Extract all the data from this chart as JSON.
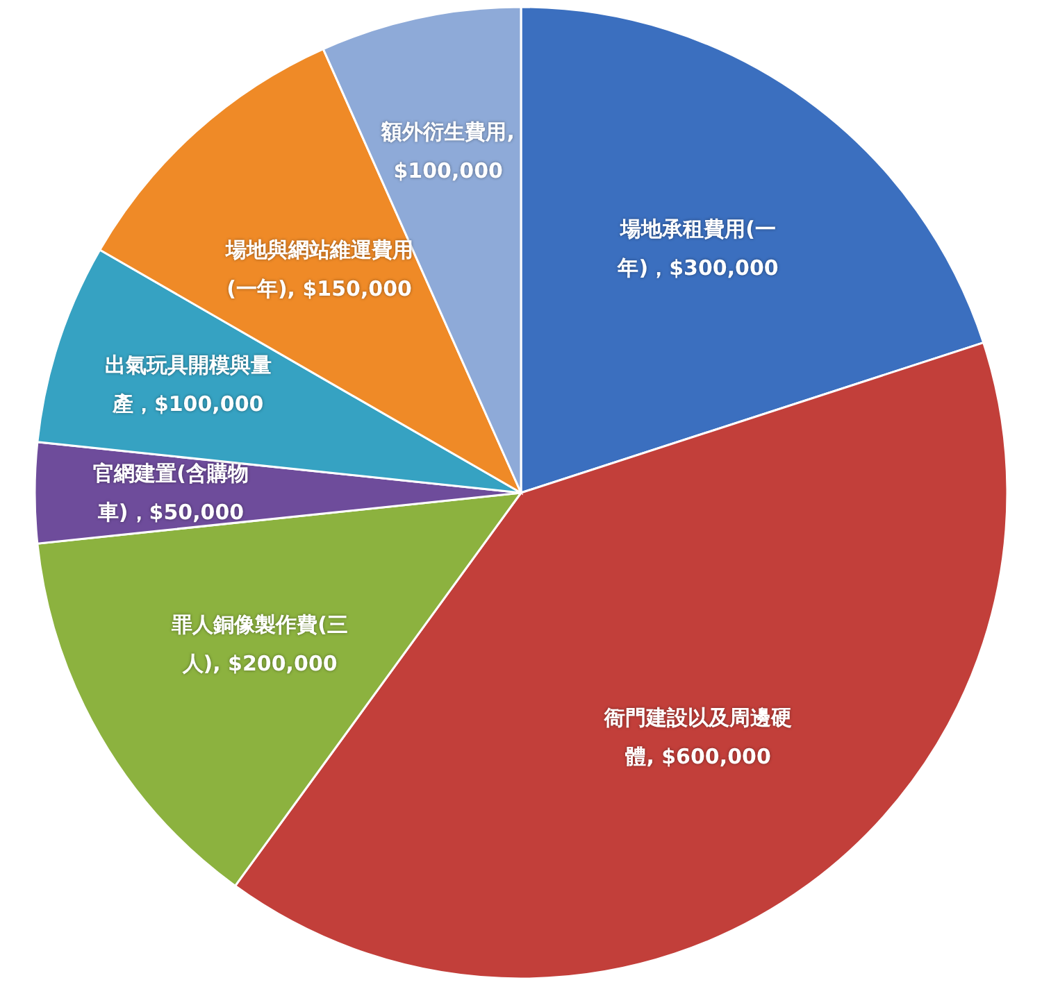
{
  "chart_data": {
    "type": "pie",
    "categories": [
      "場地承租費用(一年)",
      "衙門建設以及周邊硬體",
      "罪人銅像製作費(三人)",
      "官網建置(含購物車)",
      "出氣玩具開模與量產",
      "場地與網站維運費用(一年)",
      "額外衍生費用"
    ],
    "values": [
      300000,
      600000,
      200000,
      50000,
      100000,
      150000,
      100000
    ],
    "value_labels": [
      "，$300,000",
      ", $600,000",
      ", $200,000",
      "，$50,000",
      "，$100,000",
      ", $150,000",
      ", $100,000"
    ],
    "colors": [
      "#3b6fbf",
      "#c23f3a",
      "#8cb23f",
      "#6e4c9b",
      "#36a2c2",
      "#ef8a27",
      "#8eaad8"
    ]
  }
}
